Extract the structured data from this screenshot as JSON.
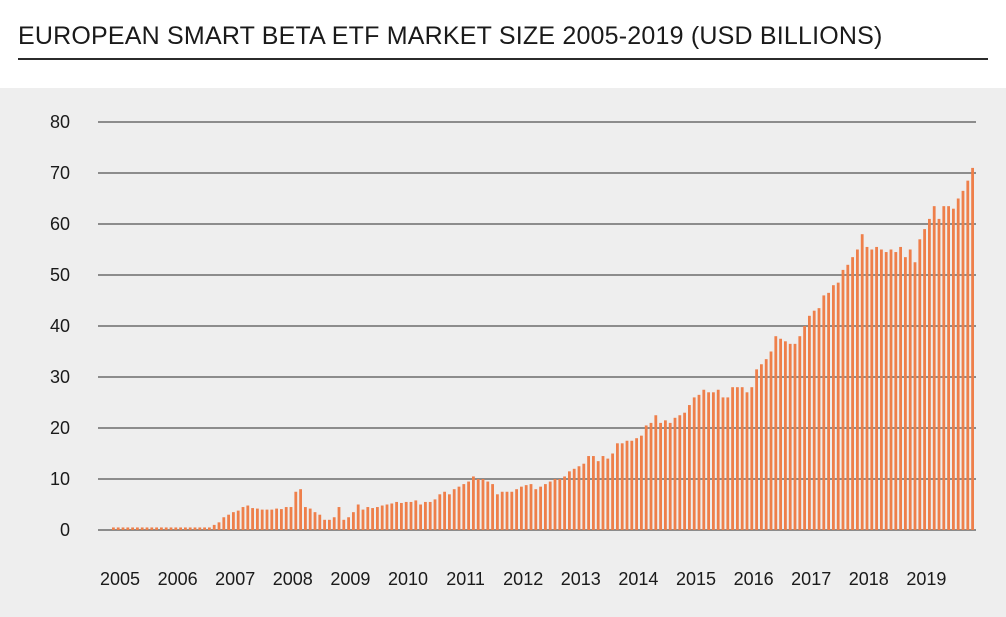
{
  "title": "EUROPEAN SMART BETA ETF MARKET SIZE 2005-2019 (USD BILLIONS)",
  "chart_data": {
    "type": "bar",
    "ylim": [
      0,
      80
    ],
    "grid": true,
    "bar_color": "#ee7f4a",
    "y_ticks": [
      "0",
      "10",
      "20",
      "30",
      "40",
      "50",
      "60",
      "70",
      "80"
    ],
    "x_tick_labels": [
      "2005",
      "2006",
      "2007",
      "2008",
      "2009",
      "2010",
      "2011",
      "2012",
      "2013",
      "2014",
      "2015",
      "2016",
      "2017",
      "2018",
      "2019"
    ],
    "x_start_year": 2005,
    "points_per_year": 12,
    "values": [
      0.5,
      0.5,
      0.5,
      0.5,
      0.5,
      0.5,
      0.5,
      0.5,
      0.5,
      0.5,
      0.5,
      0.5,
      0.5,
      0.5,
      0.5,
      0.5,
      0.5,
      0.5,
      0.5,
      0.5,
      0.5,
      1.0,
      1.5,
      2.5,
      3.0,
      3.5,
      3.8,
      4.5,
      4.8,
      4.3,
      4.2,
      4.0,
      4.0,
      4.0,
      4.2,
      4.1,
      4.5,
      4.5,
      7.5,
      8.0,
      4.5,
      4.2,
      3.5,
      3.0,
      2.0,
      2.0,
      2.5,
      4.5,
      2.0,
      2.5,
      3.5,
      5.0,
      4.0,
      4.5,
      4.3,
      4.5,
      4.8,
      5.0,
      5.2,
      5.5,
      5.3,
      5.5,
      5.5,
      5.8,
      5.0,
      5.5,
      5.5,
      6.0,
      7.0,
      7.5,
      7.0,
      8.0,
      8.5,
      9.0,
      9.5,
      10.5,
      10.0,
      10.0,
      9.5,
      9.0,
      7.0,
      7.5,
      7.5,
      7.5,
      8.0,
      8.5,
      8.8,
      9.0,
      8.0,
      8.5,
      9.0,
      9.5,
      10.0,
      10.0,
      10.5,
      11.5,
      12.0,
      12.5,
      13.0,
      14.5,
      14.5,
      13.5,
      14.5,
      14.0,
      15.0,
      17.0,
      17.0,
      17.5,
      17.5,
      18.0,
      18.5,
      20.5,
      21.0,
      22.5,
      21.0,
      21.5,
      21.0,
      22.0,
      22.5,
      23.0,
      24.5,
      26.0,
      26.5,
      27.5,
      27.0,
      27.0,
      27.5,
      26.0,
      26.0,
      28.0,
      28.0,
      28.0,
      27.0,
      28.0,
      31.5,
      32.5,
      33.5,
      35.0,
      38.0,
      37.5,
      37.0,
      36.5,
      36.5,
      38.0,
      40.0,
      42.0,
      43.0,
      43.5,
      46.0,
      46.5,
      48.0,
      48.5,
      51.0,
      52.0,
      53.5,
      55.0,
      58.0,
      55.5,
      55.0,
      55.5,
      55.0,
      54.5,
      55.0,
      54.5,
      55.5,
      53.5,
      55.0,
      52.5,
      57.0,
      59.0,
      61.0,
      63.5,
      61.0,
      63.5,
      63.5,
      63.0,
      65.0,
      66.5,
      68.5,
      71.0
    ]
  }
}
